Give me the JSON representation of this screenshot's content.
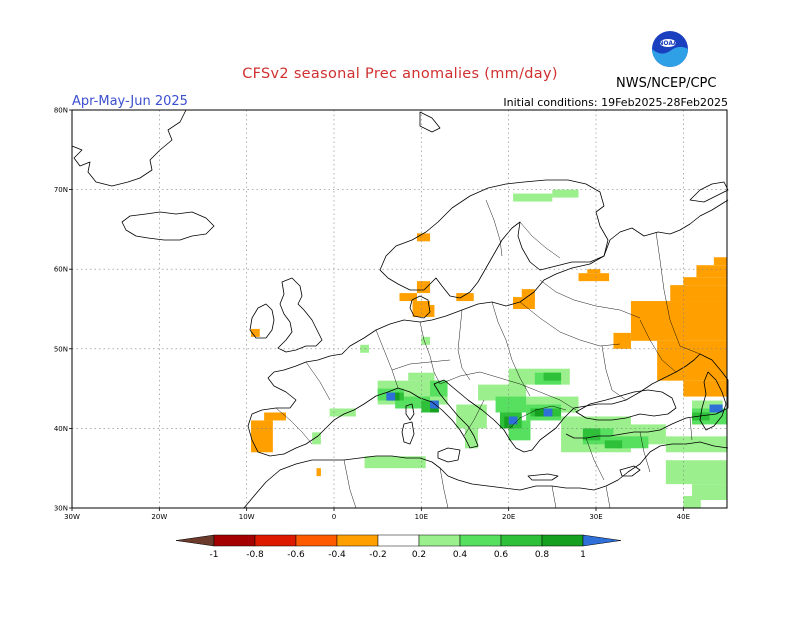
{
  "header": {
    "title": "CFSv2 seasonal Prec anomalies (mm/day)",
    "period": "Apr-May-Jun 2025",
    "initial_conditions": "Initial conditions: 19Feb2025-28Feb2025",
    "agency": "NWS/NCEP/CPC",
    "logo_text": "NOAA"
  },
  "map": {
    "region": "Europe",
    "projection": "lat-lon",
    "lon_range": [
      -30,
      45
    ],
    "lat_range": [
      30,
      80
    ],
    "grid": true,
    "lat_labels": [
      "80N",
      "70N",
      "60N",
      "50N",
      "40N",
      "30N"
    ],
    "lon_labels": [
      "30W",
      "20W",
      "10W",
      "0",
      "10E",
      "20E",
      "30E",
      "40E"
    ]
  },
  "colorbar": {
    "tick_labels": [
      "-1",
      "-0.8",
      "-0.6",
      "-0.4",
      "-0.2",
      "0.2",
      "0.4",
      "0.6",
      "0.8",
      "1"
    ],
    "colors": {
      "lt_-1": "#6b3a2a",
      "-1_-0.8": "#a50000",
      "-0.8_-0.6": "#dd1a00",
      "-0.6_-0.4": "#ff5a00",
      "-0.4_-0.2": "#ffa000",
      "-0.2_0.2": "#ffffff",
      "0.2_0.4": "#9bef8c",
      "0.4_0.6": "#57e060",
      "0.6_0.8": "#2fc03a",
      "0.8_1": "#16a020",
      "gt_1": "#2f6fd8"
    }
  },
  "anomalies": [
    {
      "lon": [
        9.5,
        11
      ],
      "lat": [
        57,
        58.5
      ],
      "level": "-0.4_-0.2"
    },
    {
      "lon": [
        7.5,
        9.5
      ],
      "lat": [
        56,
        57
      ],
      "level": "-0.4_-0.2"
    },
    {
      "lon": [
        9,
        11.5
      ],
      "lat": [
        54,
        55.5
      ],
      "level": "-0.4_-0.2"
    },
    {
      "lon": [
        9,
        11
      ],
      "lat": [
        55,
        56
      ],
      "level": "-0.4_-0.2"
    },
    {
      "lon": [
        14,
        16
      ],
      "lat": [
        56,
        57
      ],
      "level": "-0.4_-0.2"
    },
    {
      "lon": [
        20.5,
        23
      ],
      "lat": [
        55,
        56.5
      ],
      "level": "-0.4_-0.2"
    },
    {
      "lon": [
        21.5,
        23
      ],
      "lat": [
        56,
        57.5
      ],
      "level": "-0.4_-0.2"
    },
    {
      "lon": [
        28,
        31.5
      ],
      "lat": [
        58.5,
        59.5
      ],
      "level": "-0.4_-0.2"
    },
    {
      "lon": [
        29,
        30.5
      ],
      "lat": [
        59.5,
        60
      ],
      "level": "-0.4_-0.2"
    },
    {
      "lon": [
        9.5,
        11
      ],
      "lat": [
        63.5,
        64.5
      ],
      "level": "-0.4_-0.2"
    },
    {
      "lon": [
        34,
        45
      ],
      "lat": [
        51,
        56
      ],
      "level": "-0.4_-0.2"
    },
    {
      "lon": [
        37,
        45
      ],
      "lat": [
        46,
        51
      ],
      "level": "-0.4_-0.2"
    },
    {
      "lon": [
        40,
        45
      ],
      "lat": [
        44,
        46
      ],
      "level": "-0.4_-0.2"
    },
    {
      "lon": [
        38.5,
        45
      ],
      "lat": [
        56,
        58
      ],
      "level": "-0.4_-0.2"
    },
    {
      "lon": [
        40,
        45
      ],
      "lat": [
        58,
        59
      ],
      "level": "-0.4_-0.2"
    },
    {
      "lon": [
        41.5,
        45
      ],
      "lat": [
        59,
        60.5
      ],
      "level": "-0.4_-0.2"
    },
    {
      "lon": [
        43.5,
        45
      ],
      "lat": [
        60.5,
        61.5
      ],
      "level": "-0.4_-0.2"
    },
    {
      "lon": [
        32,
        34
      ],
      "lat": [
        50,
        52
      ],
      "level": "-0.4_-0.2"
    },
    {
      "lon": [
        -9.5,
        -7
      ],
      "lat": [
        37,
        41
      ],
      "level": "-0.4_-0.2"
    },
    {
      "lon": [
        -8,
        -5.5
      ],
      "lat": [
        41,
        42
      ],
      "level": "-0.4_-0.2"
    },
    {
      "lon": [
        -9.5,
        -8.5
      ],
      "lat": [
        51.5,
        52.5
      ],
      "level": "-0.4_-0.2"
    },
    {
      "lon": [
        -2,
        -1.5
      ],
      "lat": [
        34,
        35
      ],
      "level": "-0.4_-0.2"
    },
    {
      "lon": [
        41,
        42.5
      ],
      "lat": [
        40.5,
        41.5
      ],
      "level": "-0.4_-0.2"
    },
    {
      "lon": [
        20.5,
        25
      ],
      "lat": [
        68.5,
        69.5
      ],
      "level": "0.2_0.4"
    },
    {
      "lon": [
        25,
        28
      ],
      "lat": [
        69,
        70
      ],
      "level": "0.2_0.4"
    },
    {
      "lon": [
        5,
        13
      ],
      "lat": [
        43,
        46
      ],
      "level": "0.2_0.4"
    },
    {
      "lon": [
        8.5,
        11.5
      ],
      "lat": [
        46,
        47
      ],
      "level": "0.2_0.4"
    },
    {
      "lon": [
        -0.5,
        2.5
      ],
      "lat": [
        41.5,
        42.5
      ],
      "level": "0.2_0.4"
    },
    {
      "lon": [
        -2.5,
        -1.5
      ],
      "lat": [
        38,
        39.5
      ],
      "level": "0.2_0.4"
    },
    {
      "lon": [
        3.5,
        10.5
      ],
      "lat": [
        35,
        36.5
      ],
      "level": "0.2_0.4"
    },
    {
      "lon": [
        14,
        17.5
      ],
      "lat": [
        40,
        43
      ],
      "level": "0.2_0.4"
    },
    {
      "lon": [
        15,
        16.5
      ],
      "lat": [
        37.5,
        40
      ],
      "level": "0.2_0.4"
    },
    {
      "lon": [
        16.5,
        22
      ],
      "lat": [
        43.5,
        45.5
      ],
      "level": "0.2_0.4"
    },
    {
      "lon": [
        20,
        27
      ],
      "lat": [
        45.5,
        47.5
      ],
      "level": "0.2_0.4"
    },
    {
      "lon": [
        20,
        28
      ],
      "lat": [
        42,
        44
      ],
      "level": "0.2_0.4"
    },
    {
      "lon": [
        26,
        34
      ],
      "lat": [
        37,
        41.5
      ],
      "level": "0.2_0.4"
    },
    {
      "lon": [
        34,
        38
      ],
      "lat": [
        38,
        40.5
      ],
      "level": "0.2_0.4"
    },
    {
      "lon": [
        38,
        45
      ],
      "lat": [
        37,
        39
      ],
      "level": "0.2_0.4"
    },
    {
      "lon": [
        38,
        45
      ],
      "lat": [
        33,
        36
      ],
      "level": "0.2_0.4"
    },
    {
      "lon": [
        41,
        45
      ],
      "lat": [
        31,
        33
      ],
      "level": "0.2_0.4"
    },
    {
      "lon": [
        40,
        42
      ],
      "lat": [
        30,
        31.5
      ],
      "level": "0.2_0.4"
    },
    {
      "lon": [
        3,
        4
      ],
      "lat": [
        49.5,
        50.5
      ],
      "level": "0.2_0.4"
    },
    {
      "lon": [
        10,
        11
      ],
      "lat": [
        50.5,
        51.5
      ],
      "level": "0.2_0.4"
    },
    {
      "lon": [
        41,
        44.5
      ],
      "lat": [
        41.5,
        43.5
      ],
      "level": "0.2_0.4"
    },
    {
      "lon": [
        5,
        8
      ],
      "lat": [
        43.5,
        45
      ],
      "level": "0.4_0.6"
    },
    {
      "lon": [
        7,
        11
      ],
      "lat": [
        42.5,
        44
      ],
      "level": "0.4_0.6"
    },
    {
      "lon": [
        11,
        13
      ],
      "lat": [
        44,
        46
      ],
      "level": "0.4_0.6"
    },
    {
      "lon": [
        18.5,
        22
      ],
      "lat": [
        42,
        44
      ],
      "level": "0.4_0.6"
    },
    {
      "lon": [
        22,
        26
      ],
      "lat": [
        41,
        43
      ],
      "level": "0.4_0.6"
    },
    {
      "lon": [
        23,
        26
      ],
      "lat": [
        45.5,
        47
      ],
      "level": "0.4_0.6"
    },
    {
      "lon": [
        28.5,
        32
      ],
      "lat": [
        38,
        40
      ],
      "level": "0.4_0.6"
    },
    {
      "lon": [
        32,
        36
      ],
      "lat": [
        37.5,
        39
      ],
      "level": "0.4_0.6"
    },
    {
      "lon": [
        20,
        22.5
      ],
      "lat": [
        38.5,
        41
      ],
      "level": "0.4_0.6"
    },
    {
      "lon": [
        41,
        45
      ],
      "lat": [
        40.5,
        42.5
      ],
      "level": "0.4_0.6"
    },
    {
      "lon": [
        6,
        8
      ],
      "lat": [
        43.5,
        44.5
      ],
      "level": "0.6_0.8"
    },
    {
      "lon": [
        10,
        12
      ],
      "lat": [
        42,
        43.5
      ],
      "level": "0.6_0.8"
    },
    {
      "lon": [
        19,
        21.5
      ],
      "lat": [
        40,
        42
      ],
      "level": "0.6_0.8"
    },
    {
      "lon": [
        22.5,
        26
      ],
      "lat": [
        41.5,
        42.5
      ],
      "level": "0.6_0.8"
    },
    {
      "lon": [
        28.5,
        30.5
      ],
      "lat": [
        38.5,
        40
      ],
      "level": "0.6_0.8"
    },
    {
      "lon": [
        31,
        33
      ],
      "lat": [
        37.5,
        38.5
      ],
      "level": "0.6_0.8"
    },
    {
      "lon": [
        24,
        26
      ],
      "lat": [
        46,
        47
      ],
      "level": "0.6_0.8"
    },
    {
      "lon": [
        41,
        43
      ],
      "lat": [
        41,
        42
      ],
      "level": "0.6_0.8"
    },
    {
      "lon": [
        6.5,
        7.5
      ],
      "lat": [
        43.5,
        44.5
      ],
      "level": "0.8_1"
    },
    {
      "lon": [
        11,
        12
      ],
      "lat": [
        42,
        43
      ],
      "level": "0.8_1"
    },
    {
      "lon": [
        19.5,
        20.5
      ],
      "lat": [
        40,
        41.5
      ],
      "level": "0.8_1"
    },
    {
      "lon": [
        23,
        25
      ],
      "lat": [
        41.5,
        42.5
      ],
      "level": "0.8_1"
    },
    {
      "lon": [
        6,
        7
      ],
      "lat": [
        43.5,
        44.5
      ],
      "level": "gt_1"
    },
    {
      "lon": [
        11,
        12
      ],
      "lat": [
        42.5,
        43.5
      ],
      "level": "gt_1"
    },
    {
      "lon": [
        20,
        21
      ],
      "lat": [
        40.5,
        41.5
      ],
      "level": "gt_1"
    },
    {
      "lon": [
        24,
        25
      ],
      "lat": [
        41.5,
        42.5
      ],
      "level": "gt_1"
    },
    {
      "lon": [
        43,
        44.5
      ],
      "lat": [
        42,
        43
      ],
      "level": "gt_1"
    }
  ]
}
